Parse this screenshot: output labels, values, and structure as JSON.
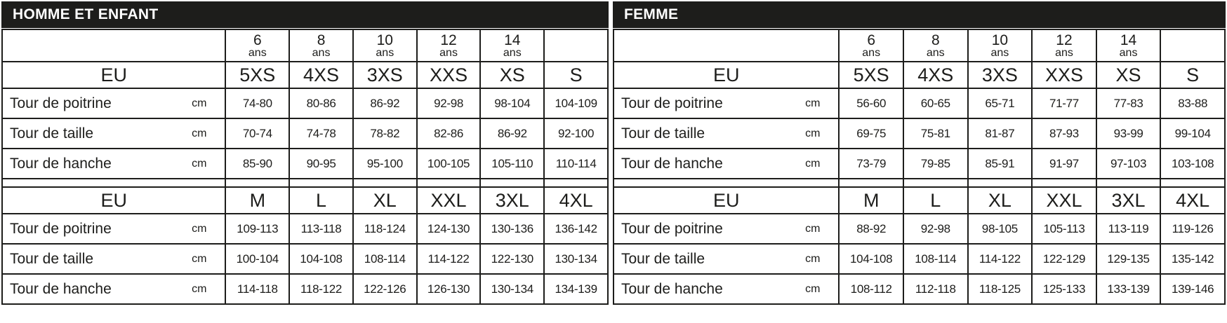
{
  "page": {
    "background": "#ffffff",
    "grid_color": "#1d1d1b",
    "header_bg": "#1d1d1b",
    "header_text_color": "#ffffff"
  },
  "tables": [
    {
      "id": "homme-et-enfant",
      "title": "HOMME ET ENFANT",
      "ages": [
        "6",
        "8",
        "10",
        "12",
        "14"
      ],
      "age_unit": "ans",
      "eu_label": "EU",
      "unit": "cm",
      "sections": [
        {
          "sizes": [
            "5XS",
            "4XS",
            "3XS",
            "XXS",
            "XS",
            "S"
          ],
          "rows": [
            {
              "label": "Tour de poitrine",
              "values": [
                "74-80",
                "80-86",
                "86-92",
                "92-98",
                "98-104",
                "104-109"
              ]
            },
            {
              "label": "Tour de taille",
              "values": [
                "70-74",
                "74-78",
                "78-82",
                "82-86",
                "86-92",
                "92-100"
              ]
            },
            {
              "label": "Tour de hanche",
              "values": [
                "85-90",
                "90-95",
                "95-100",
                "100-105",
                "105-110",
                "110-114"
              ]
            }
          ]
        },
        {
          "sizes": [
            "M",
            "L",
            "XL",
            "XXL",
            "3XL",
            "4XL"
          ],
          "rows": [
            {
              "label": "Tour de poitrine",
              "values": [
                "109-113",
                "113-118",
                "118-124",
                "124-130",
                "130-136",
                "136-142"
              ]
            },
            {
              "label": "Tour de taille",
              "values": [
                "100-104",
                "104-108",
                "108-114",
                "114-122",
                "122-130",
                "130-134"
              ]
            },
            {
              "label": "Tour de hanche",
              "values": [
                "114-118",
                "118-122",
                "122-126",
                "126-130",
                "130-134",
                "134-139"
              ]
            }
          ]
        }
      ]
    },
    {
      "id": "femme",
      "title": "FEMME",
      "ages": [
        "6",
        "8",
        "10",
        "12",
        "14"
      ],
      "age_unit": "ans",
      "eu_label": "EU",
      "unit": "cm",
      "sections": [
        {
          "sizes": [
            "5XS",
            "4XS",
            "3XS",
            "XXS",
            "XS",
            "S"
          ],
          "rows": [
            {
              "label": "Tour de poitrine",
              "values": [
                "56-60",
                "60-65",
                "65-71",
                "71-77",
                "77-83",
                "83-88"
              ]
            },
            {
              "label": "Tour de taille",
              "values": [
                "69-75",
                "75-81",
                "81-87",
                "87-93",
                "93-99",
                "99-104"
              ]
            },
            {
              "label": "Tour de hanche",
              "values": [
                "73-79",
                "79-85",
                "85-91",
                "91-97",
                "97-103",
                "103-108"
              ]
            }
          ]
        },
        {
          "sizes": [
            "M",
            "L",
            "XL",
            "XXL",
            "3XL",
            "4XL"
          ],
          "rows": [
            {
              "label": "Tour de poitrine",
              "values": [
                "88-92",
                "92-98",
                "98-105",
                "105-113",
                "113-119",
                "119-126"
              ]
            },
            {
              "label": "Tour de taille",
              "values": [
                "104-108",
                "108-114",
                "114-122",
                "122-129",
                "129-135",
                "135-142"
              ]
            },
            {
              "label": "Tour de hanche",
              "values": [
                "108-112",
                "112-118",
                "118-125",
                "125-133",
                "133-139",
                "139-146"
              ]
            }
          ]
        }
      ]
    }
  ]
}
